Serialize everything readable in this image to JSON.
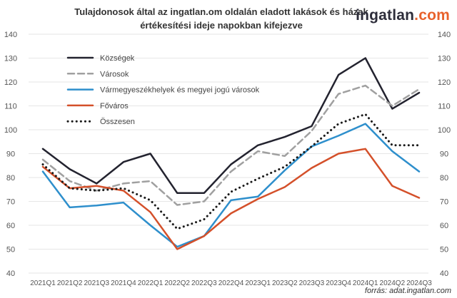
{
  "logo": {
    "main": "ingatlan",
    "suffix": ".com"
  },
  "source": "forrás: adat.ingatlan.com",
  "chart_data": {
    "type": "line",
    "title": "Tulajdonosok által az ingatlan.om oldalán eladott lakások és házak értékesítési ideje napokban kifejezve",
    "title_lines": [
      "Tulajdonosok által az ingatlan.om oldalán eladott lakások és házak",
      "értékesítési ideje napokban kifejezve"
    ],
    "categories": [
      "2021Q1",
      "2021Q2",
      "2021Q3",
      "2021Q4",
      "2022Q1",
      "2022Q2",
      "2022Q3",
      "2022Q4",
      "2023Q1",
      "2023Q2",
      "2023Q3",
      "2023Q4",
      "2024Q1",
      "2024Q2",
      "2024Q3"
    ],
    "ylim": [
      40,
      140
    ],
    "yticks": [
      40,
      50,
      60,
      70,
      80,
      90,
      100,
      110,
      120,
      130,
      140
    ],
    "y_axes": "left and right",
    "grid": true,
    "legend": "top-left",
    "series": [
      {
        "name": "Községek",
        "color": "#23232f",
        "style": "solid",
        "values": [
          92,
          83.5,
          77.5,
          86.5,
          90,
          73.5,
          73.5,
          85.5,
          93.5,
          97,
          101.5,
          123,
          130,
          108.8,
          115.5
        ]
      },
      {
        "name": "Városok",
        "color": "#a0a0a0",
        "style": "dashed",
        "values": [
          87.5,
          78.5,
          74.5,
          77.5,
          78.5,
          68.5,
          70,
          82.5,
          91,
          89,
          99.5,
          115,
          118.5,
          110,
          117
        ]
      },
      {
        "name": "Vármegyeszékhelyek és megyei jogú városok",
        "color": "#2e8fcc",
        "style": "solid",
        "values": [
          82.5,
          67.5,
          68.3,
          69.5,
          60,
          51,
          55.5,
          70.5,
          72,
          83,
          93,
          97.5,
          102.5,
          91,
          82.5
        ]
      },
      {
        "name": "Főváros",
        "color": "#d4502a",
        "style": "solid",
        "values": [
          84.5,
          75.5,
          76.5,
          74.5,
          65.5,
          50,
          55.5,
          65,
          71,
          76,
          84,
          90,
          92,
          76.5,
          71.5
        ]
      },
      {
        "name": "Összesen",
        "color": "#1a1a1a",
        "style": "dotted",
        "values": [
          85.5,
          75.5,
          74.5,
          75.5,
          70.5,
          58.5,
          62.5,
          74,
          79.5,
          84.5,
          93,
          102.5,
          106.5,
          93.5,
          93.5
        ]
      }
    ]
  }
}
